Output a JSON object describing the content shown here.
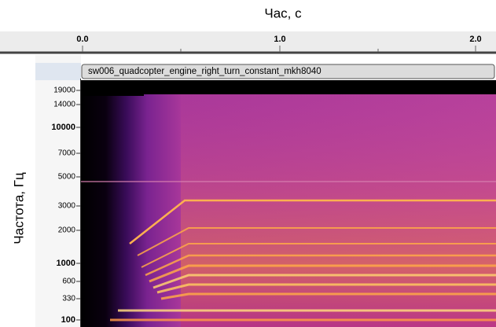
{
  "axis_title_x": "Час, с",
  "time_ticks": [
    "0.0",
    "1.0",
    "2.0"
  ],
  "track_name": "sw006_quadcopter_engine_right_turn_constant_mkh8040",
  "axis_title_y": "Частота, Гц",
  "freq_ticks": [
    "19000",
    "14000",
    "10000",
    "7000",
    "5000",
    "3000",
    "2000",
    "1000",
    "600",
    "330",
    "100"
  ]
}
